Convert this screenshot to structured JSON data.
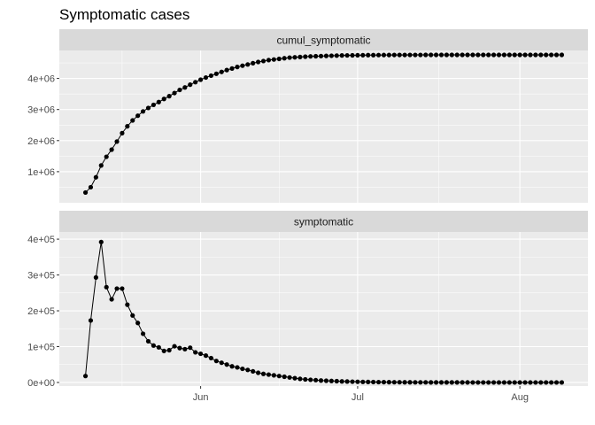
{
  "chart_data": {
    "type": "line",
    "title": "Symptomatic cases",
    "x_tick_labels": [
      "Jun",
      "Jul",
      "Aug"
    ],
    "x_ticks": [
      "2020-06-01",
      "2020-07-01",
      "2020-08-01"
    ],
    "xlim": [
      "2020-05-05",
      "2020-08-14"
    ],
    "grid": true,
    "markers": true,
    "colors": {
      "panel_bg": "#ebebeb",
      "strip_bg": "#d9d9d9",
      "grid": "#ffffff",
      "series": "#000000"
    },
    "panels": [
      {
        "strip_label": "cumul_symptomatic",
        "ylim": [
          0,
          4900000
        ],
        "y_ticks": [
          1000000,
          2000000,
          3000000,
          4000000
        ],
        "y_tick_labels": [
          "1e+06",
          "2e+06",
          "3e+06",
          "4e+06"
        ],
        "series": [
          {
            "x": [
              "2020-05-10",
              "2020-05-11",
              "2020-05-12",
              "2020-05-13",
              "2020-05-14",
              "2020-05-15",
              "2020-05-16",
              "2020-05-17",
              "2020-05-18",
              "2020-05-19",
              "2020-05-20",
              "2020-05-21",
              "2020-05-22",
              "2020-05-23",
              "2020-05-24",
              "2020-05-25",
              "2020-05-26",
              "2020-05-27",
              "2020-05-28",
              "2020-05-29",
              "2020-05-30",
              "2020-05-31",
              "2020-06-01",
              "2020-06-02",
              "2020-06-03",
              "2020-06-04",
              "2020-06-05",
              "2020-06-06",
              "2020-06-07",
              "2020-06-08",
              "2020-06-09",
              "2020-06-10",
              "2020-06-11",
              "2020-06-12",
              "2020-06-13",
              "2020-06-14",
              "2020-06-15",
              "2020-06-16",
              "2020-06-17",
              "2020-06-18",
              "2020-06-19",
              "2020-06-20",
              "2020-06-21",
              "2020-06-22",
              "2020-06-23",
              "2020-06-24",
              "2020-06-25",
              "2020-06-26",
              "2020-06-27",
              "2020-06-28",
              "2020-06-29",
              "2020-06-30",
              "2020-07-01",
              "2020-07-02",
              "2020-07-03",
              "2020-07-04",
              "2020-07-05",
              "2020-07-06",
              "2020-07-07",
              "2020-07-08",
              "2020-07-09",
              "2020-07-10",
              "2020-07-11",
              "2020-07-12",
              "2020-07-13",
              "2020-07-14",
              "2020-07-15",
              "2020-07-16",
              "2020-07-17",
              "2020-07-18",
              "2020-07-19",
              "2020-07-20",
              "2020-07-21",
              "2020-07-22",
              "2020-07-23",
              "2020-07-24",
              "2020-07-25",
              "2020-07-26",
              "2020-07-27",
              "2020-07-28",
              "2020-07-29",
              "2020-07-30",
              "2020-07-31",
              "2020-08-01",
              "2020-08-02",
              "2020-08-03",
              "2020-08-04",
              "2020-08-05",
              "2020-08-06",
              "2020-08-07",
              "2020-08-08",
              "2020-08-09"
            ],
            "y": [
              330000,
              500000,
              820000,
              1200000,
              1480000,
              1710000,
              1970000,
              2240000,
              2460000,
              2650000,
              2800000,
              2940000,
              3050000,
              3150000,
              3240000,
              3340000,
              3430000,
              3530000,
              3630000,
              3710000,
              3800000,
              3880000,
              3960000,
              4030000,
              4090000,
              4150000,
              4210000,
              4270000,
              4320000,
              4370000,
              4410000,
              4450000,
              4490000,
              4530000,
              4560000,
              4590000,
              4610000,
              4630000,
              4650000,
              4670000,
              4680000,
              4690000,
              4700000,
              4710000,
              4715000,
              4720000,
              4725000,
              4730000,
              4735000,
              4740000,
              4742000,
              4744000,
              4746000,
              4748000,
              4750000,
              4751000,
              4752000,
              4753000,
              4754000,
              4755000,
              4755000,
              4755000,
              4756000,
              4756000,
              4756000,
              4757000,
              4757000,
              4757000,
              4757000,
              4757000,
              4758000,
              4758000,
              4758000,
              4758000,
              4758000,
              4758000,
              4758000,
              4758000,
              4758000,
              4758000,
              4758000,
              4758000,
              4758000,
              4758000,
              4758000,
              4758000,
              4758000,
              4758000,
              4758000,
              4758000,
              4758000,
              4758000
            ]
          }
        ]
      },
      {
        "strip_label": "symptomatic",
        "ylim": [
          -10000,
          420000
        ],
        "y_ticks": [
          0,
          100000,
          200000,
          300000,
          400000
        ],
        "y_tick_labels": [
          "0e+00",
          "1e+05",
          "2e+05",
          "3e+05",
          "4e+05"
        ],
        "series": [
          {
            "x": [
              "2020-05-10",
              "2020-05-11",
              "2020-05-12",
              "2020-05-13",
              "2020-05-14",
              "2020-05-15",
              "2020-05-16",
              "2020-05-17",
              "2020-05-18",
              "2020-05-19",
              "2020-05-20",
              "2020-05-21",
              "2020-05-22",
              "2020-05-23",
              "2020-05-24",
              "2020-05-25",
              "2020-05-26",
              "2020-05-27",
              "2020-05-28",
              "2020-05-29",
              "2020-05-30",
              "2020-05-31",
              "2020-06-01",
              "2020-06-02",
              "2020-06-03",
              "2020-06-04",
              "2020-06-05",
              "2020-06-06",
              "2020-06-07",
              "2020-06-08",
              "2020-06-09",
              "2020-06-10",
              "2020-06-11",
              "2020-06-12",
              "2020-06-13",
              "2020-06-14",
              "2020-06-15",
              "2020-06-16",
              "2020-06-17",
              "2020-06-18",
              "2020-06-19",
              "2020-06-20",
              "2020-06-21",
              "2020-06-22",
              "2020-06-23",
              "2020-06-24",
              "2020-06-25",
              "2020-06-26",
              "2020-06-27",
              "2020-06-28",
              "2020-06-29",
              "2020-06-30",
              "2020-07-01",
              "2020-07-02",
              "2020-07-03",
              "2020-07-04",
              "2020-07-05",
              "2020-07-06",
              "2020-07-07",
              "2020-07-08",
              "2020-07-09",
              "2020-07-10",
              "2020-07-11",
              "2020-07-12",
              "2020-07-13",
              "2020-07-14",
              "2020-07-15",
              "2020-07-16",
              "2020-07-17",
              "2020-07-18",
              "2020-07-19",
              "2020-07-20",
              "2020-07-21",
              "2020-07-22",
              "2020-07-23",
              "2020-07-24",
              "2020-07-25",
              "2020-07-26",
              "2020-07-27",
              "2020-07-28",
              "2020-07-29",
              "2020-07-30",
              "2020-07-31",
              "2020-08-01",
              "2020-08-02",
              "2020-08-03",
              "2020-08-04",
              "2020-08-05",
              "2020-08-06",
              "2020-08-07",
              "2020-08-08",
              "2020-08-09"
            ],
            "y": [
              18000,
              173000,
              293000,
              392000,
              266000,
              232000,
              262000,
              262000,
              217000,
              187000,
              166000,
              136000,
              115000,
              103000,
              98000,
              88000,
              90000,
              101000,
              96000,
              93000,
              97000,
              84000,
              80000,
              75000,
              68000,
              60000,
              55000,
              50000,
              45000,
              42000,
              38000,
              35000,
              31000,
              27000,
              24000,
              22000,
              20000,
              18000,
              16000,
              14000,
              12000,
              10000,
              8500,
              7500,
              6500,
              5500,
              4800,
              4200,
              3600,
              3000,
              2600,
              2200,
              1900,
              1600,
              1400,
              1200,
              1000,
              900,
              800,
              700,
              600,
              500,
              450,
              400,
              350,
              300,
              260,
              230,
              200,
              180,
              160,
              140,
              120,
              100,
              90,
              80,
              70,
              60,
              50,
              45,
              40,
              35,
              30,
              25,
              20,
              18,
              16,
              14,
              12,
              10,
              8,
              6
            ]
          }
        ]
      }
    ]
  }
}
